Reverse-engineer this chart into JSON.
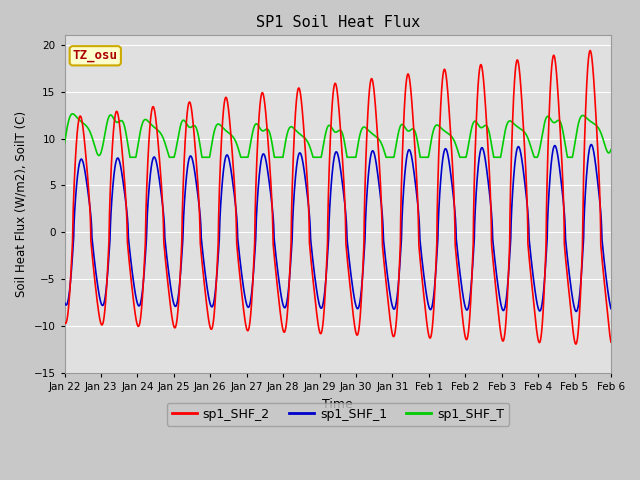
{
  "title": "SP1 Soil Heat Flux",
  "xlabel": "Time",
  "ylabel": "Soil Heat Flux (W/m2), SoilT (C)",
  "ylim": [
    -15,
    21
  ],
  "yticks": [
    -15,
    -10,
    -5,
    0,
    5,
    10,
    15,
    20
  ],
  "fig_bg": "#c8c8c8",
  "plot_bg": "#e0e0e0",
  "legend_labels": [
    "sp1_SHF_2",
    "sp1_SHF_1",
    "sp1_SHF_T"
  ],
  "legend_colors": [
    "#ff0000",
    "#0000cc",
    "#00cc00"
  ],
  "annotation_text": "TZ_osu",
  "annotation_color": "#aa0000",
  "annotation_bg": "#ffffcc",
  "annotation_border": "#ccaa00",
  "line_width": 1.2,
  "xtick_labels": [
    "Jan 22",
    "Jan 23",
    "Jan 24",
    "Jan 25",
    "Jan 26",
    "Jan 27",
    "Jan 28",
    "Jan 29",
    "Jan 30",
    "Jan 31",
    "Feb 1",
    "Feb 2",
    "Feb 3",
    "Feb 4",
    "Feb 5",
    "Feb 6"
  ],
  "num_days": 15,
  "points_per_day": 240
}
